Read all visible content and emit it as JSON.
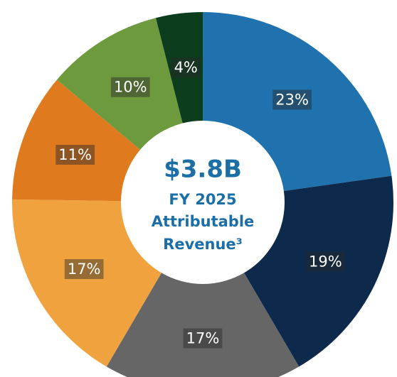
{
  "chart_data": {
    "type": "donut",
    "center_lines": [
      "$3.8B",
      "FY 2025",
      "Attributable",
      "Revenue³"
    ],
    "categories": [
      null,
      null,
      null,
      null,
      null,
      null,
      null
    ],
    "values": [
      23,
      19,
      17,
      17,
      11,
      10,
      4
    ],
    "value_labels": [
      "23%",
      "19%",
      "17%",
      "17%",
      "11%",
      "10%",
      "4%"
    ],
    "colors": [
      "#1f72ad",
      "#0d2a4d",
      "#666666",
      "#f0a23f",
      "#e07a1f",
      "#6c9a3d",
      "#0c3d1d"
    ]
  }
}
